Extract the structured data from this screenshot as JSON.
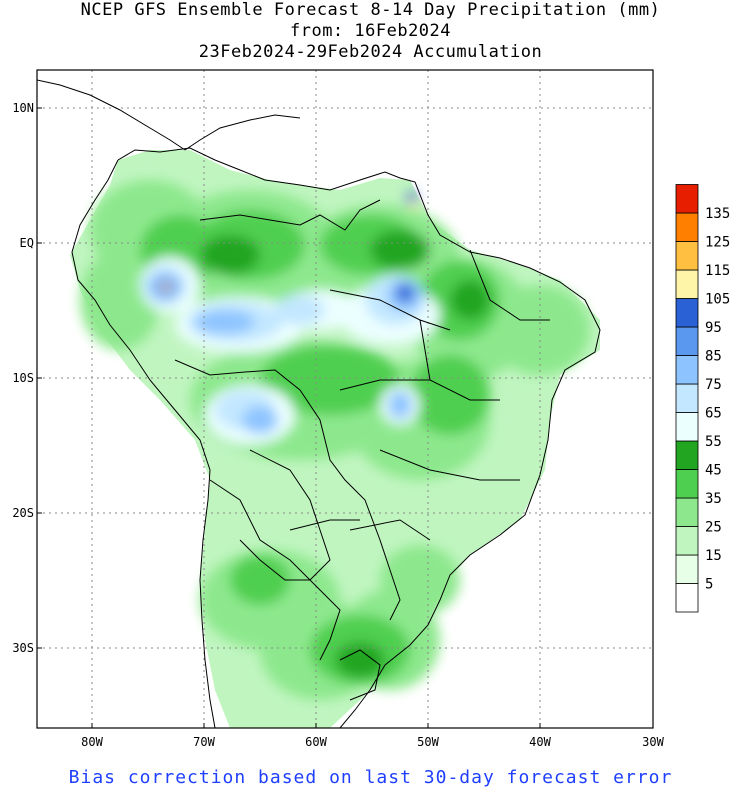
{
  "title": {
    "line1": "NCEP GFS Ensemble Forecast 8-14 Day Precipitation (mm)",
    "line2": "from: 16Feb2024",
    "line3": "23Feb2024-29Feb2024 Accumulation"
  },
  "lat_labels": [
    "10N",
    "EQ",
    "10S",
    "20S",
    "30S"
  ],
  "lon_labels": [
    "80W",
    "70W",
    "60W",
    "50W",
    "40W",
    "30W"
  ],
  "legend": {
    "labels": [
      "5",
      "15",
      "25",
      "35",
      "45",
      "55",
      "65",
      "75",
      "85",
      "95",
      "105",
      "115",
      "125",
      "135"
    ],
    "colors": [
      "#ffffff",
      "#e6ffe6",
      "#c0f5c0",
      "#8de88d",
      "#4fcf4f",
      "#22a622",
      "#ecffff",
      "#c2e7ff",
      "#8dc4ff",
      "#5a98f0",
      "#2a62d6",
      "#fff5a8",
      "#ffbf40",
      "#ff7f00",
      "#e81e00"
    ]
  },
  "footer": "Bias correction based on last 30-day forecast error",
  "colors": {
    "footer_text": "#1f3fff",
    "grid": "#888888",
    "coast": "#000000"
  }
}
